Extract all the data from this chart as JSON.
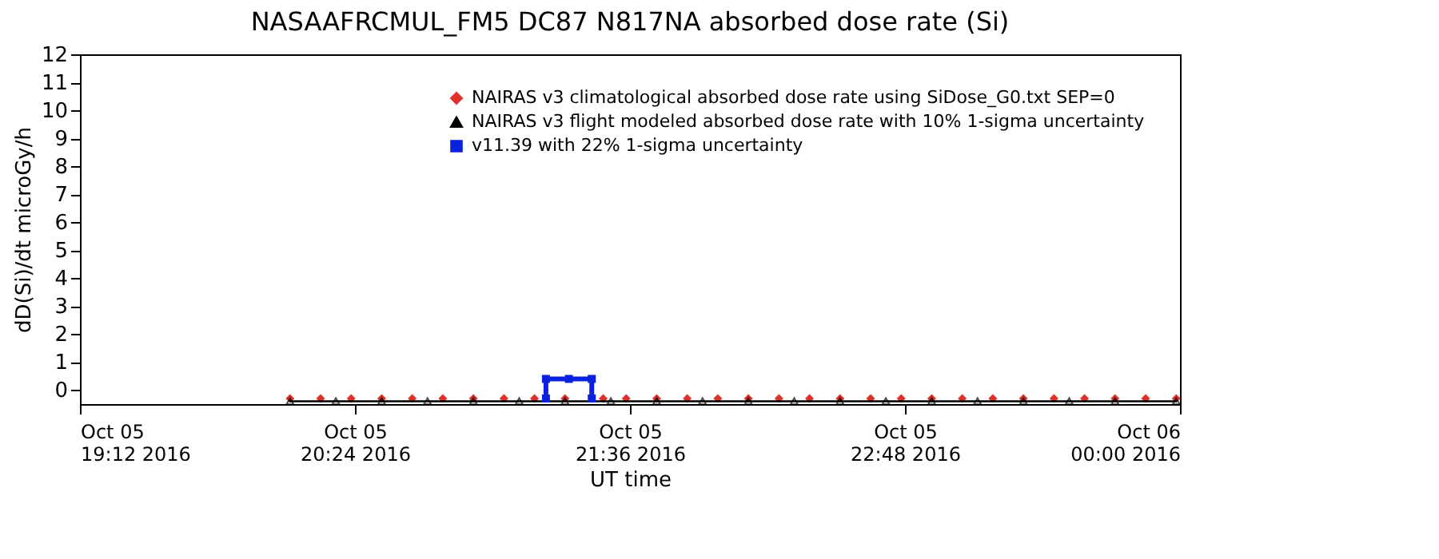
{
  "chart_data": {
    "type": "line",
    "title": "NASAAFRCMUL_FM5 DC87 N817NA absorbed dose rate (Si)",
    "xlabel": "UT time",
    "ylabel": "dD(Si)/dt microGy/h",
    "series": [
      {
        "name": "NAIRAS v3 climatological absorbed dose rate using SiDose_G0.txt SEP=0",
        "type": "scatter",
        "marker": "diamond",
        "color": "#e0302a",
        "x": [
          "2016-10-05T20:07",
          "2016-10-05T20:15",
          "2016-10-05T20:23",
          "2016-10-05T20:31",
          "2016-10-05T20:39",
          "2016-10-05T20:47",
          "2016-10-05T20:55",
          "2016-10-05T21:03",
          "2016-10-05T21:11",
          "2016-10-05T21:19",
          "2016-10-05T21:29",
          "2016-10-05T21:35",
          "2016-10-05T21:43",
          "2016-10-05T21:51",
          "2016-10-05T21:59",
          "2016-10-05T22:07",
          "2016-10-05T22:15",
          "2016-10-05T22:23",
          "2016-10-05T22:31",
          "2016-10-05T22:39",
          "2016-10-05T22:47",
          "2016-10-05T22:55",
          "2016-10-05T23:03",
          "2016-10-05T23:11",
          "2016-10-05T23:19",
          "2016-10-05T23:27",
          "2016-10-05T23:35",
          "2016-10-05T23:43",
          "2016-10-05T23:51",
          "2016-10-05T23:59"
        ],
        "values": [
          -0.3,
          -0.3,
          -0.3,
          -0.3,
          -0.3,
          -0.3,
          -0.3,
          -0.3,
          -0.3,
          -0.3,
          -0.3,
          -0.3,
          -0.3,
          -0.3,
          -0.3,
          -0.3,
          -0.3,
          -0.3,
          -0.3,
          -0.3,
          -0.3,
          -0.3,
          -0.3,
          -0.3,
          -0.3,
          -0.3,
          -0.3,
          -0.3,
          -0.3,
          -0.3
        ]
      },
      {
        "name": "NAIRAS v3 flight modeled absorbed dose rate with 10% 1-sigma uncertainty",
        "type": "line",
        "marker": "triangle",
        "color": "#000000",
        "x": [
          "2016-10-05T20:07",
          "2016-10-05T20:19",
          "2016-10-05T20:31",
          "2016-10-05T20:43",
          "2016-10-05T20:55",
          "2016-10-05T21:07",
          "2016-10-05T21:19",
          "2016-10-05T21:31",
          "2016-10-05T21:43",
          "2016-10-05T21:55",
          "2016-10-05T22:07",
          "2016-10-05T22:19",
          "2016-10-05T22:31",
          "2016-10-05T22:43",
          "2016-10-05T22:55",
          "2016-10-05T23:07",
          "2016-10-05T23:19",
          "2016-10-05T23:31",
          "2016-10-05T23:43",
          "2016-10-05T23:59"
        ],
        "values": [
          -0.4,
          -0.4,
          -0.4,
          -0.4,
          -0.4,
          -0.4,
          -0.4,
          -0.4,
          -0.4,
          -0.4,
          -0.4,
          -0.4,
          -0.4,
          -0.4,
          -0.4,
          -0.4,
          -0.4,
          -0.4,
          -0.4,
          -0.4
        ]
      },
      {
        "name": "v11.39 with 22% 1-sigma uncertainty",
        "type": "line",
        "marker": "square",
        "color": "#0a22e0",
        "x": [
          "2016-10-05T21:14",
          "2016-10-05T21:14",
          "2016-10-05T21:20",
          "2016-10-05T21:26",
          "2016-10-05T21:26"
        ],
        "values": [
          -0.3,
          0.4,
          0.4,
          0.4,
          -0.3
        ]
      }
    ],
    "xlim": [
      "2016-10-05T19:12",
      "2016-10-06T00:00"
    ],
    "xticks": [
      {
        "value": "2016-10-05T19:12",
        "label": "Oct 05\n19:12 2016"
      },
      {
        "value": "2016-10-05T20:24",
        "label": "Oct 05\n20:24 2016"
      },
      {
        "value": "2016-10-05T21:36",
        "label": "Oct 05\n21:36 2016"
      },
      {
        "value": "2016-10-05T22:48",
        "label": "Oct 05\n22:48 2016"
      },
      {
        "value": "2016-10-06T00:00",
        "label": "Oct 06\n00:00 2016"
      }
    ],
    "ylim": [
      -0.5,
      12
    ],
    "yticks": [
      0,
      1,
      2,
      3,
      4,
      5,
      6,
      7,
      8,
      9,
      10,
      11,
      12
    ],
    "grid": false,
    "legend": "top right"
  }
}
